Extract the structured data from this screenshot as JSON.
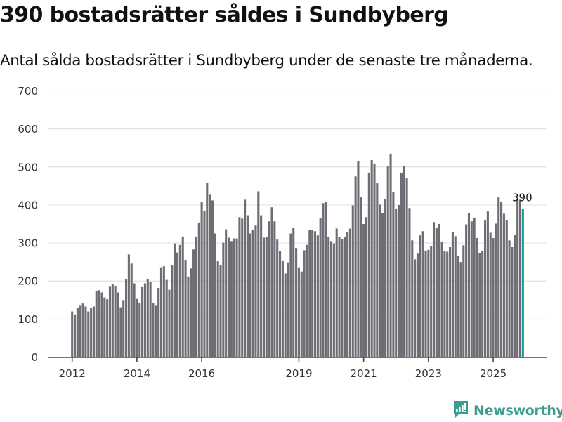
{
  "header": {
    "title": "390 bostadsrätter såldes i Sundbyberg",
    "subtitle": "Antal sålda bostadsrätter i Sundbyberg under de senaste tre månaderna."
  },
  "footer": {
    "brand": "Newsworthy",
    "logo_icon": "bar-chart-speech-bubble-icon"
  },
  "colors": {
    "bar": "#6e6d74",
    "highlight": "#1a9a96",
    "grid": "#e3e3e3",
    "axis": "#444444",
    "brand": "#3d9c92"
  },
  "chart_data": {
    "type": "bar",
    "title": "390 bostadsrätter såldes i Sundbyberg",
    "subtitle": "Antal sålda bostadsrätter i Sundbyberg under de senaste tre månaderna.",
    "xlabel": "",
    "ylabel": "",
    "ylim": [
      0,
      700
    ],
    "yticks": [
      0,
      100,
      200,
      300,
      400,
      500,
      600,
      700
    ],
    "grid": true,
    "x_start": "2012-01",
    "x_end": "2025-12",
    "frequency": "monthly",
    "xtick_labels": [
      {
        "label": "2012",
        "index": 0
      },
      {
        "label": "2014",
        "index": 24
      },
      {
        "label": "2016",
        "index": 48
      },
      {
        "label": "2019",
        "index": 84
      },
      {
        "label": "2021",
        "index": 108
      },
      {
        "label": "2023",
        "index": 132
      },
      {
        "label": "2025",
        "index": 156
      }
    ],
    "highlight_index": 167,
    "highlight_label": "390",
    "values": [
      120,
      112,
      130,
      135,
      141,
      133,
      120,
      130,
      133,
      174,
      176,
      170,
      157,
      152,
      185,
      191,
      187,
      170,
      131,
      150,
      205,
      270,
      246,
      194,
      153,
      143,
      184,
      194,
      205,
      197,
      143,
      135,
      182,
      236,
      239,
      203,
      177,
      241,
      299,
      275,
      295,
      317,
      256,
      212,
      233,
      283,
      317,
      354,
      408,
      384,
      458,
      427,
      412,
      325,
      253,
      242,
      301,
      336,
      314,
      305,
      312,
      312,
      368,
      364,
      414,
      373,
      325,
      334,
      346,
      436,
      373,
      314,
      316,
      357,
      394,
      357,
      309,
      279,
      253,
      220,
      249,
      325,
      340,
      287,
      236,
      225,
      281,
      295,
      334,
      334,
      331,
      320,
      366,
      405,
      408,
      316,
      305,
      299,
      338,
      316,
      311,
      316,
      329,
      338,
      399,
      475,
      516,
      420,
      350,
      368,
      485,
      518,
      509,
      457,
      401,
      379,
      416,
      503,
      535,
      433,
      391,
      400,
      485,
      502,
      470,
      392,
      307,
      257,
      272,
      320,
      331,
      280,
      282,
      291,
      355,
      340,
      350,
      304,
      279,
      277,
      289,
      329,
      318,
      267,
      250,
      294,
      349,
      379,
      357,
      366,
      313,
      274,
      279,
      359,
      383,
      327,
      313,
      351,
      420,
      409,
      377,
      361,
      307,
      289,
      322,
      414,
      414,
      390
    ]
  }
}
